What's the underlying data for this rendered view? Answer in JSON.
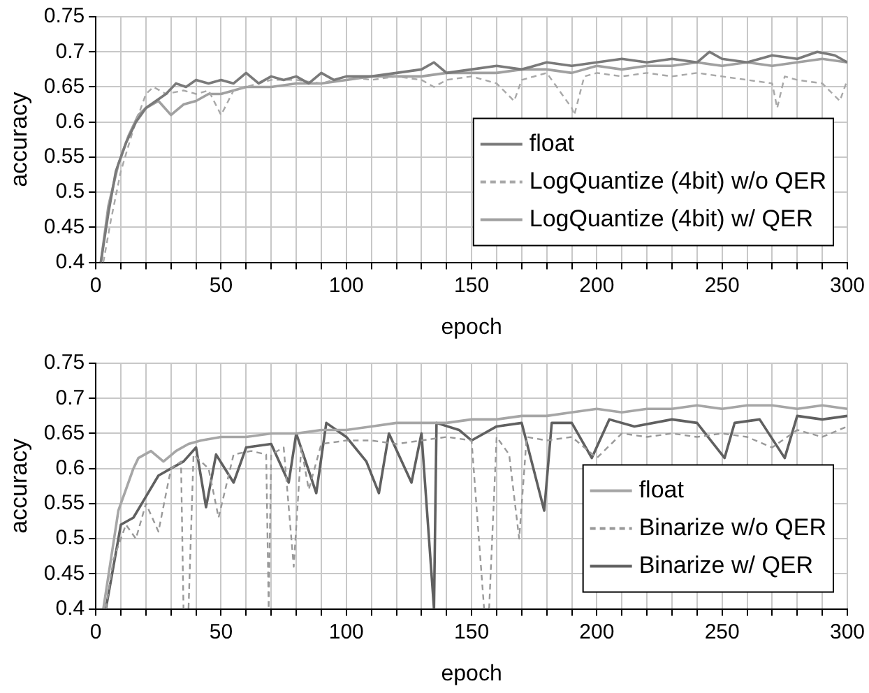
{
  "chart_data": [
    {
      "type": "line",
      "xlabel": "epoch",
      "ylabel": "accuracy",
      "xlim": [
        0,
        300
      ],
      "ylim": [
        0.4,
        0.75
      ],
      "xticks": [
        0,
        {
          "value": 10,
          "label": null
        },
        {
          "value": 20,
          "label": null
        },
        {
          "value": 30,
          "label": null
        },
        {
          "value": 40,
          "label": null
        },
        50,
        {
          "value": 60,
          "label": null
        },
        {
          "value": 70,
          "label": null
        },
        {
          "value": 80,
          "label": null
        },
        {
          "value": 90,
          "label": null
        },
        100,
        {
          "value": 110,
          "label": null
        },
        {
          "value": 120,
          "label": null
        },
        {
          "value": 130,
          "label": null
        },
        {
          "value": 140,
          "label": null
        },
        150,
        {
          "value": 160,
          "label": null
        },
        {
          "value": 170,
          "label": null
        },
        {
          "value": 180,
          "label": null
        },
        {
          "value": 190,
          "label": null
        },
        200,
        {
          "value": 210,
          "label": null
        },
        {
          "value": 220,
          "label": null
        },
        {
          "value": 230,
          "label": null
        },
        {
          "value": 240,
          "label": null
        },
        250,
        {
          "value": 260,
          "label": null
        },
        {
          "value": 270,
          "label": null
        },
        {
          "value": 280,
          "label": null
        },
        {
          "value": 290,
          "label": null
        },
        300
      ],
      "yticks": [
        0.4,
        0.45,
        0.5,
        0.55,
        0.6,
        0.65,
        0.7,
        0.75
      ],
      "grid": true,
      "legend": "bottom right",
      "marker": "none",
      "series": [
        {
          "name": "float",
          "color": "#7a7a7a",
          "line_style": "solid",
          "x": [
            2,
            5,
            8,
            12,
            16,
            20,
            24,
            28,
            32,
            36,
            40,
            45,
            50,
            55,
            60,
            65,
            70,
            75,
            80,
            85,
            90,
            95,
            100,
            110,
            120,
            130,
            135,
            140,
            150,
            160,
            170,
            180,
            190,
            200,
            210,
            220,
            230,
            240,
            245,
            250,
            260,
            270,
            280,
            288,
            295,
            300
          ],
          "values": [
            0.4,
            0.47,
            0.53,
            0.57,
            0.6,
            0.62,
            0.63,
            0.64,
            0.655,
            0.65,
            0.66,
            0.655,
            0.66,
            0.655,
            0.67,
            0.655,
            0.665,
            0.66,
            0.665,
            0.655,
            0.67,
            0.66,
            0.665,
            0.665,
            0.67,
            0.675,
            0.685,
            0.67,
            0.675,
            0.68,
            0.675,
            0.685,
            0.68,
            0.685,
            0.69,
            0.685,
            0.69,
            0.685,
            0.7,
            0.69,
            0.685,
            0.695,
            0.69,
            0.7,
            0.695,
            0.685
          ]
        },
        {
          "name": "LogQuantize (4bit) w/o QER",
          "color": "#a8a8a8",
          "line_style": "dashed",
          "x": [
            3,
            6,
            10,
            15,
            20,
            23,
            28,
            35,
            40,
            45,
            50,
            55,
            60,
            70,
            80,
            90,
            100,
            110,
            120,
            130,
            135,
            140,
            150,
            160,
            167,
            170,
            180,
            190,
            191,
            195,
            200,
            210,
            220,
            230,
            240,
            250,
            260,
            270,
            272,
            275,
            280,
            290,
            297,
            300
          ],
          "values": [
            0.4,
            0.46,
            0.53,
            0.59,
            0.64,
            0.65,
            0.64,
            0.645,
            0.64,
            0.645,
            0.61,
            0.645,
            0.65,
            0.66,
            0.66,
            0.655,
            0.665,
            0.66,
            0.665,
            0.66,
            0.65,
            0.66,
            0.665,
            0.655,
            0.63,
            0.66,
            0.67,
            0.62,
            0.61,
            0.665,
            0.67,
            0.665,
            0.67,
            0.665,
            0.67,
            0.665,
            0.66,
            0.655,
            0.62,
            0.665,
            0.66,
            0.655,
            0.63,
            0.66
          ]
        },
        {
          "name": "LogQuantize (4bit) w/ QER",
          "color": "#a0a0a0",
          "line_style": "solid",
          "x": [
            2,
            5,
            9,
            13,
            17,
            20,
            25,
            30,
            35,
            40,
            45,
            50,
            55,
            60,
            70,
            80,
            90,
            100,
            110,
            120,
            130,
            140,
            150,
            160,
            170,
            180,
            190,
            200,
            210,
            220,
            230,
            240,
            250,
            260,
            270,
            280,
            290,
            300
          ],
          "values": [
            0.4,
            0.48,
            0.54,
            0.58,
            0.61,
            0.62,
            0.63,
            0.61,
            0.625,
            0.63,
            0.64,
            0.64,
            0.645,
            0.65,
            0.65,
            0.655,
            0.655,
            0.66,
            0.665,
            0.665,
            0.665,
            0.67,
            0.67,
            0.67,
            0.675,
            0.675,
            0.67,
            0.68,
            0.675,
            0.68,
            0.68,
            0.685,
            0.68,
            0.685,
            0.68,
            0.685,
            0.69,
            0.685
          ]
        }
      ]
    },
    {
      "type": "line",
      "xlabel": "epoch",
      "ylabel": "accuracy",
      "xlim": [
        0,
        300
      ],
      "ylim": [
        0.4,
        0.75
      ],
      "xticks": [
        0,
        {
          "value": 10,
          "label": null
        },
        {
          "value": 20,
          "label": null
        },
        {
          "value": 30,
          "label": null
        },
        {
          "value": 40,
          "label": null
        },
        50,
        {
          "value": 60,
          "label": null
        },
        {
          "value": 70,
          "label": null
        },
        {
          "value": 80,
          "label": null
        },
        {
          "value": 90,
          "label": null
        },
        100,
        {
          "value": 110,
          "label": null
        },
        {
          "value": 120,
          "label": null
        },
        {
          "value": 130,
          "label": null
        },
        {
          "value": 140,
          "label": null
        },
        150,
        {
          "value": 160,
          "label": null
        },
        {
          "value": 170,
          "label": null
        },
        {
          "value": 180,
          "label": null
        },
        {
          "value": 190,
          "label": null
        },
        200,
        {
          "value": 210,
          "label": null
        },
        {
          "value": 220,
          "label": null
        },
        {
          "value": 230,
          "label": null
        },
        {
          "value": 240,
          "label": null
        },
        250,
        {
          "value": 260,
          "label": null
        },
        {
          "value": 270,
          "label": null
        },
        {
          "value": 280,
          "label": null
        },
        {
          "value": 290,
          "label": null
        },
        300
      ],
      "yticks": [
        0.4,
        0.45,
        0.5,
        0.55,
        0.6,
        0.65,
        0.7,
        0.75
      ],
      "grid": true,
      "legend": "bottom right",
      "marker": "none",
      "series": [
        {
          "name": "float",
          "color": "#a6a6a6",
          "line_style": "solid",
          "x": [
            3,
            6,
            9,
            12,
            15,
            17,
            22,
            27,
            32,
            37,
            42,
            50,
            60,
            70,
            80,
            90,
            100,
            110,
            120,
            130,
            140,
            150,
            160,
            170,
            180,
            190,
            200,
            210,
            220,
            230,
            240,
            250,
            260,
            270,
            280,
            290,
            300
          ],
          "values": [
            0.4,
            0.47,
            0.54,
            0.57,
            0.6,
            0.615,
            0.625,
            0.61,
            0.625,
            0.635,
            0.64,
            0.645,
            0.645,
            0.65,
            0.65,
            0.655,
            0.655,
            0.66,
            0.665,
            0.665,
            0.665,
            0.67,
            0.67,
            0.675,
            0.675,
            0.68,
            0.685,
            0.68,
            0.685,
            0.685,
            0.69,
            0.685,
            0.69,
            0.69,
            0.685,
            0.69,
            0.685
          ]
        },
        {
          "name": "Binarize w/o QER",
          "color": "#999999",
          "line_style": "dashed",
          "x": [
            4,
            7,
            12,
            16,
            20,
            25,
            30,
            34,
            35,
            37,
            39,
            45,
            49,
            55,
            62,
            68,
            69,
            70,
            75,
            79,
            82,
            85,
            90,
            100,
            110,
            120,
            130,
            140,
            150,
            155,
            157,
            160,
            165,
            169,
            172,
            180,
            190,
            200,
            210,
            220,
            230,
            240,
            250,
            260,
            270,
            280,
            290,
            300
          ],
          "values": [
            0.4,
            0.47,
            0.52,
            0.5,
            0.55,
            0.51,
            0.6,
            0.61,
            0.4,
            0.4,
            0.62,
            0.6,
            0.53,
            0.62,
            0.625,
            0.62,
            0.4,
            0.62,
            0.63,
            0.46,
            0.63,
            0.57,
            0.635,
            0.64,
            0.64,
            0.635,
            0.64,
            0.645,
            0.64,
            0.4,
            0.4,
            0.645,
            0.62,
            0.5,
            0.645,
            0.64,
            0.645,
            0.615,
            0.65,
            0.645,
            0.65,
            0.645,
            0.65,
            0.645,
            0.63,
            0.655,
            0.645,
            0.66
          ]
        },
        {
          "name": "Binarize w/ QER",
          "color": "#606060",
          "line_style": "solid",
          "x": [
            4,
            7,
            10,
            15,
            20,
            25,
            30,
            35,
            40,
            44,
            48,
            55,
            60,
            70,
            77,
            80,
            88,
            92,
            100,
            108,
            113,
            117,
            126,
            130,
            135,
            136,
            145,
            150,
            160,
            170,
            179,
            182,
            190,
            198,
            205,
            215,
            230,
            240,
            251,
            255,
            265,
            275,
            280,
            290,
            300
          ],
          "values": [
            0.4,
            0.46,
            0.52,
            0.53,
            0.56,
            0.59,
            0.6,
            0.61,
            0.63,
            0.545,
            0.62,
            0.58,
            0.63,
            0.635,
            0.58,
            0.65,
            0.565,
            0.665,
            0.645,
            0.61,
            0.565,
            0.65,
            0.58,
            0.65,
            0.4,
            0.665,
            0.655,
            0.64,
            0.66,
            0.665,
            0.54,
            0.665,
            0.665,
            0.615,
            0.67,
            0.66,
            0.67,
            0.665,
            0.615,
            0.665,
            0.67,
            0.615,
            0.675,
            0.67,
            0.675
          ]
        }
      ]
    }
  ]
}
